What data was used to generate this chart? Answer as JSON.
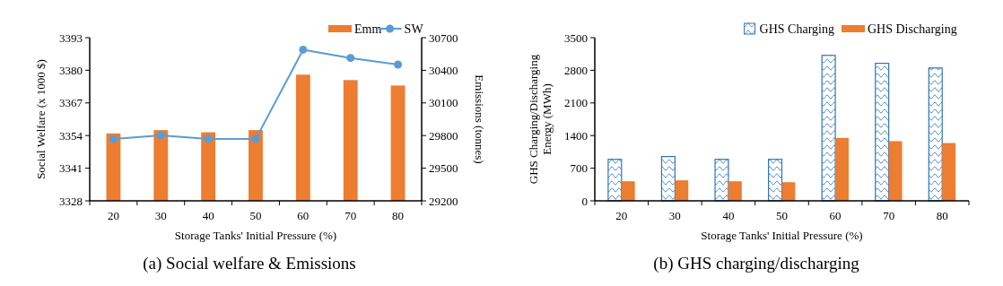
{
  "chart_data": [
    {
      "type": "bar",
      "title": "(a) Social welfare & Emissions",
      "xlabel": "Storage Tanks' Initial Pressure (%)",
      "ylabel": "Social Welfare  (x 1000 $)",
      "y2label": "Emissions (tonnes)",
      "categories": [
        "20",
        "30",
        "40",
        "50",
        "60",
        "70",
        "80"
      ],
      "series": [
        {
          "name": "Emm",
          "type": "bar",
          "axis": "y2",
          "color": "#ed7d31",
          "values": [
            29820,
            29850,
            29830,
            29850,
            30360,
            30310,
            30260
          ]
        },
        {
          "name": "SW",
          "type": "line",
          "axis": "y",
          "color": "#5b9bd5",
          "marker": "circle",
          "values": [
            3352.6,
            3354.1,
            3352.6,
            3352.6,
            3388.2,
            3384.9,
            3382.3
          ]
        }
      ],
      "ylim": [
        3328,
        3393
      ],
      "yticks": [
        3328,
        3341,
        3354,
        3367,
        3380,
        3393
      ],
      "y2lim": [
        29200,
        30700
      ],
      "y2ticks": [
        29200,
        29500,
        29800,
        30100,
        30400,
        30700
      ],
      "grid": false,
      "legend": "top right"
    },
    {
      "type": "bar",
      "title": "(b) GHS charging/discharging",
      "xlabel": "Storage Tanks' Initial Pressure (%)",
      "ylabel": "GHS Charging/Discharging\nEnergy (MWh)",
      "categories": [
        "20",
        "30",
        "40",
        "50",
        "60",
        "70",
        "80"
      ],
      "series": [
        {
          "name": "GHS Charging",
          "color": "#2e75b6",
          "values": [
            890,
            950,
            890,
            890,
            3120,
            2950,
            2850
          ]
        },
        {
          "name": "GHS Discharging",
          "color": "#ed7d31",
          "values": [
            420,
            440,
            420,
            400,
            1350,
            1280,
            1240
          ]
        }
      ],
      "ylim": [
        0,
        3500
      ],
      "yticks": [
        0,
        700,
        1400,
        2100,
        2800,
        3500
      ],
      "grid": false,
      "legend": "top right"
    }
  ]
}
